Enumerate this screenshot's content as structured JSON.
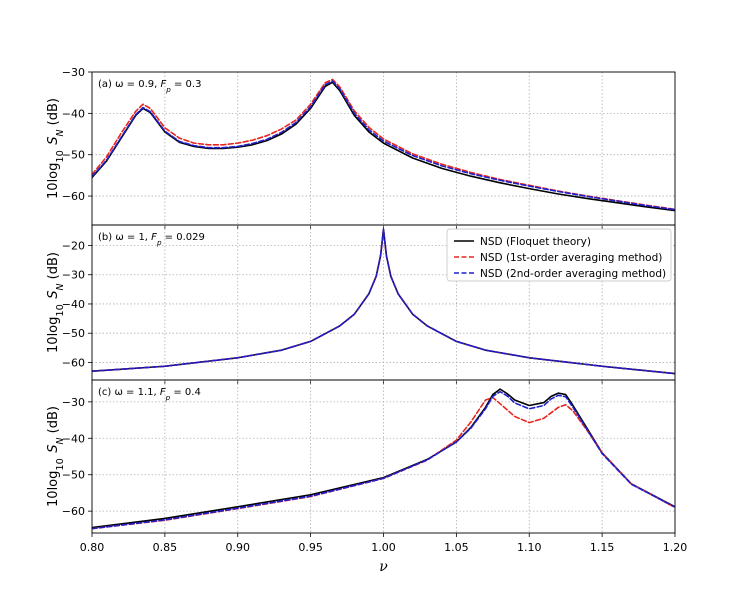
{
  "colors": {
    "floquet": "#000000",
    "first_order": "#e8261f",
    "second_order": "#1f1fcf",
    "grid": "#b0b0b0"
  },
  "chart_data": [
    {
      "type": "line",
      "panel_label": "(a) ω = 0.9, F_p = 0.3",
      "ylabel": "10log10 S_N (dB)",
      "xlabel": "",
      "xlim": [
        0.8,
        1.2
      ],
      "ylim": [
        -67,
        -30
      ],
      "yticks": [
        -60,
        -50,
        -40,
        -30
      ],
      "grid": true,
      "series": [
        {
          "key": "floquet",
          "style": "solid",
          "x": [
            0.8,
            0.81,
            0.82,
            0.83,
            0.835,
            0.84,
            0.85,
            0.86,
            0.87,
            0.88,
            0.89,
            0.9,
            0.91,
            0.92,
            0.93,
            0.94,
            0.95,
            0.96,
            0.965,
            0.97,
            0.98,
            0.99,
            1.0,
            1.02,
            1.04,
            1.06,
            1.08,
            1.1,
            1.12,
            1.14,
            1.16,
            1.18,
            1.2
          ],
          "y": [
            -55.5,
            -51.5,
            -46.0,
            -40.5,
            -38.8,
            -39.8,
            -44.5,
            -47.0,
            -48.0,
            -48.5,
            -48.5,
            -48.2,
            -47.6,
            -46.6,
            -45.0,
            -42.6,
            -38.8,
            -33.5,
            -32.5,
            -34.5,
            -40.5,
            -44.5,
            -47.2,
            -50.8,
            -53.3,
            -55.2,
            -56.8,
            -58.2,
            -59.5,
            -60.6,
            -61.6,
            -62.6,
            -63.5
          ]
        },
        {
          "key": "first_order",
          "style": "dashed",
          "x": [
            0.8,
            0.81,
            0.82,
            0.83,
            0.835,
            0.84,
            0.85,
            0.86,
            0.87,
            0.88,
            0.89,
            0.9,
            0.91,
            0.92,
            0.93,
            0.94,
            0.95,
            0.96,
            0.965,
            0.97,
            0.98,
            0.99,
            1.0,
            1.02,
            1.04,
            1.06,
            1.08,
            1.1,
            1.12,
            1.14,
            1.16,
            1.18,
            1.2
          ],
          "y": [
            -54.8,
            -50.5,
            -44.8,
            -39.5,
            -37.8,
            -38.8,
            -43.5,
            -46.0,
            -47.2,
            -47.6,
            -47.6,
            -47.2,
            -46.5,
            -45.4,
            -43.8,
            -41.6,
            -37.8,
            -32.6,
            -31.8,
            -33.6,
            -39.4,
            -43.4,
            -46.2,
            -49.8,
            -52.3,
            -54.3,
            -56.0,
            -57.4,
            -58.8,
            -60.0,
            -61.1,
            -62.2,
            -63.2
          ]
        },
        {
          "key": "second_order",
          "style": "dashed",
          "x": [
            0.8,
            0.81,
            0.82,
            0.83,
            0.835,
            0.84,
            0.85,
            0.86,
            0.87,
            0.88,
            0.89,
            0.9,
            0.91,
            0.92,
            0.93,
            0.94,
            0.95,
            0.96,
            0.965,
            0.97,
            0.98,
            0.99,
            1.0,
            1.02,
            1.04,
            1.06,
            1.08,
            1.1,
            1.12,
            1.14,
            1.16,
            1.18,
            1.2
          ],
          "y": [
            -55.3,
            -51.3,
            -45.8,
            -40.3,
            -38.6,
            -39.6,
            -44.3,
            -46.8,
            -47.8,
            -48.3,
            -48.3,
            -48.0,
            -47.3,
            -46.3,
            -44.6,
            -42.2,
            -38.4,
            -33.1,
            -32.2,
            -34.1,
            -40.0,
            -44.0,
            -46.7,
            -50.2,
            -52.7,
            -54.6,
            -56.2,
            -57.6,
            -58.9,
            -60.1,
            -61.2,
            -62.3,
            -63.3
          ]
        }
      ]
    },
    {
      "type": "line",
      "panel_label": "(b) ω = 1, F_p = 0.029",
      "ylabel": "10log10 S_N (dB)",
      "xlabel": "",
      "xlim": [
        0.8,
        1.2
      ],
      "ylim": [
        -66,
        -13
      ],
      "yticks": [
        -60,
        -50,
        -40,
        -30,
        -20
      ],
      "grid": true,
      "legend": {
        "placement": "upper right",
        "entries": [
          {
            "key": "floquet",
            "label": "NSD (Floquet theory)"
          },
          {
            "key": "first_order",
            "label": "NSD (1st-order averaging method)"
          },
          {
            "key": "second_order",
            "label": "NSD (2nd-order averaging method)"
          }
        ]
      },
      "series": [
        {
          "key": "floquet",
          "style": "solid",
          "x": [
            0.8,
            0.85,
            0.9,
            0.93,
            0.95,
            0.97,
            0.98,
            0.99,
            0.995,
            0.998,
            1.0,
            1.002,
            1.005,
            1.01,
            1.02,
            1.03,
            1.05,
            1.07,
            1.1,
            1.15,
            1.2
          ],
          "y": [
            -63.0,
            -61.3,
            -58.4,
            -55.8,
            -52.8,
            -47.5,
            -43.5,
            -36.5,
            -30.5,
            -23.5,
            -14.5,
            -23.5,
            -30.5,
            -36.5,
            -43.5,
            -47.5,
            -52.8,
            -55.8,
            -58.4,
            -61.3,
            -63.8
          ]
        },
        {
          "key": "first_order",
          "style": "dashed",
          "x": [
            0.8,
            0.85,
            0.9,
            0.93,
            0.95,
            0.97,
            0.98,
            0.99,
            0.995,
            0.998,
            1.0,
            1.002,
            1.005,
            1.01,
            1.02,
            1.03,
            1.05,
            1.07,
            1.1,
            1.15,
            1.2
          ],
          "y": [
            -63.0,
            -61.3,
            -58.4,
            -55.8,
            -52.8,
            -47.5,
            -43.5,
            -36.5,
            -30.5,
            -23.5,
            -14.5,
            -23.5,
            -30.5,
            -36.5,
            -43.5,
            -47.5,
            -52.8,
            -55.8,
            -58.4,
            -61.3,
            -63.8
          ]
        },
        {
          "key": "second_order",
          "style": "dashed",
          "x": [
            0.8,
            0.85,
            0.9,
            0.93,
            0.95,
            0.97,
            0.98,
            0.99,
            0.995,
            0.998,
            1.0,
            1.002,
            1.005,
            1.01,
            1.02,
            1.03,
            1.05,
            1.07,
            1.1,
            1.15,
            1.2
          ],
          "y": [
            -63.0,
            -61.3,
            -58.4,
            -55.8,
            -52.8,
            -47.5,
            -43.5,
            -36.5,
            -30.5,
            -23.5,
            -14.5,
            -23.5,
            -30.5,
            -36.5,
            -43.5,
            -47.5,
            -52.8,
            -55.8,
            -58.4,
            -61.3,
            -63.8
          ]
        }
      ]
    },
    {
      "type": "line",
      "panel_label": "(c) ω = 1.1, F_p = 0.4",
      "ylabel": "10log10 S_N (dB)",
      "xlabel": "ν",
      "xlim": [
        0.8,
        1.2
      ],
      "ylim": [
        -66,
        -24
      ],
      "yticks": [
        -60,
        -50,
        -40,
        -30
      ],
      "xticks": [
        "0.80",
        "0.85",
        "0.90",
        "0.95",
        "1.00",
        "1.05",
        "1.10",
        "1.15",
        "1.20"
      ],
      "grid": true,
      "series": [
        {
          "key": "floquet",
          "style": "solid",
          "x": [
            0.8,
            0.85,
            0.9,
            0.95,
            1.0,
            1.03,
            1.05,
            1.06,
            1.07,
            1.075,
            1.08,
            1.085,
            1.09,
            1.1,
            1.11,
            1.115,
            1.12,
            1.125,
            1.13,
            1.14,
            1.15,
            1.17,
            1.2
          ],
          "y": [
            -64.5,
            -62.0,
            -58.8,
            -55.5,
            -50.8,
            -45.8,
            -41.0,
            -37.0,
            -31.5,
            -28.0,
            -26.5,
            -27.8,
            -29.5,
            -31.0,
            -30.2,
            -28.5,
            -27.6,
            -28.0,
            -31.0,
            -37.5,
            -44.0,
            -52.5,
            -58.8
          ]
        },
        {
          "key": "first_order",
          "style": "dashed",
          "x": [
            0.8,
            0.85,
            0.9,
            0.95,
            1.0,
            1.03,
            1.05,
            1.06,
            1.065,
            1.07,
            1.075,
            1.08,
            1.09,
            1.1,
            1.11,
            1.12,
            1.125,
            1.13,
            1.14,
            1.15,
            1.17,
            1.2
          ],
          "y": [
            -64.8,
            -62.5,
            -59.3,
            -56.0,
            -51.0,
            -46.0,
            -40.5,
            -35.5,
            -32.5,
            -29.5,
            -28.8,
            -30.5,
            -34.0,
            -35.7,
            -34.5,
            -31.5,
            -30.8,
            -32.5,
            -38.0,
            -44.0,
            -52.5,
            -59.0
          ]
        },
        {
          "key": "second_order",
          "style": "dashed",
          "x": [
            0.8,
            0.85,
            0.9,
            0.95,
            1.0,
            1.03,
            1.05,
            1.06,
            1.07,
            1.075,
            1.08,
            1.085,
            1.09,
            1.1,
            1.11,
            1.115,
            1.12,
            1.125,
            1.13,
            1.14,
            1.15,
            1.17,
            1.2
          ],
          "y": [
            -64.8,
            -62.4,
            -59.2,
            -55.9,
            -51.0,
            -45.9,
            -41.0,
            -37.2,
            -31.9,
            -28.5,
            -27.2,
            -28.4,
            -30.3,
            -31.9,
            -31.0,
            -29.2,
            -28.2,
            -28.6,
            -31.5,
            -37.8,
            -44.2,
            -52.6,
            -58.9
          ]
        }
      ]
    }
  ]
}
